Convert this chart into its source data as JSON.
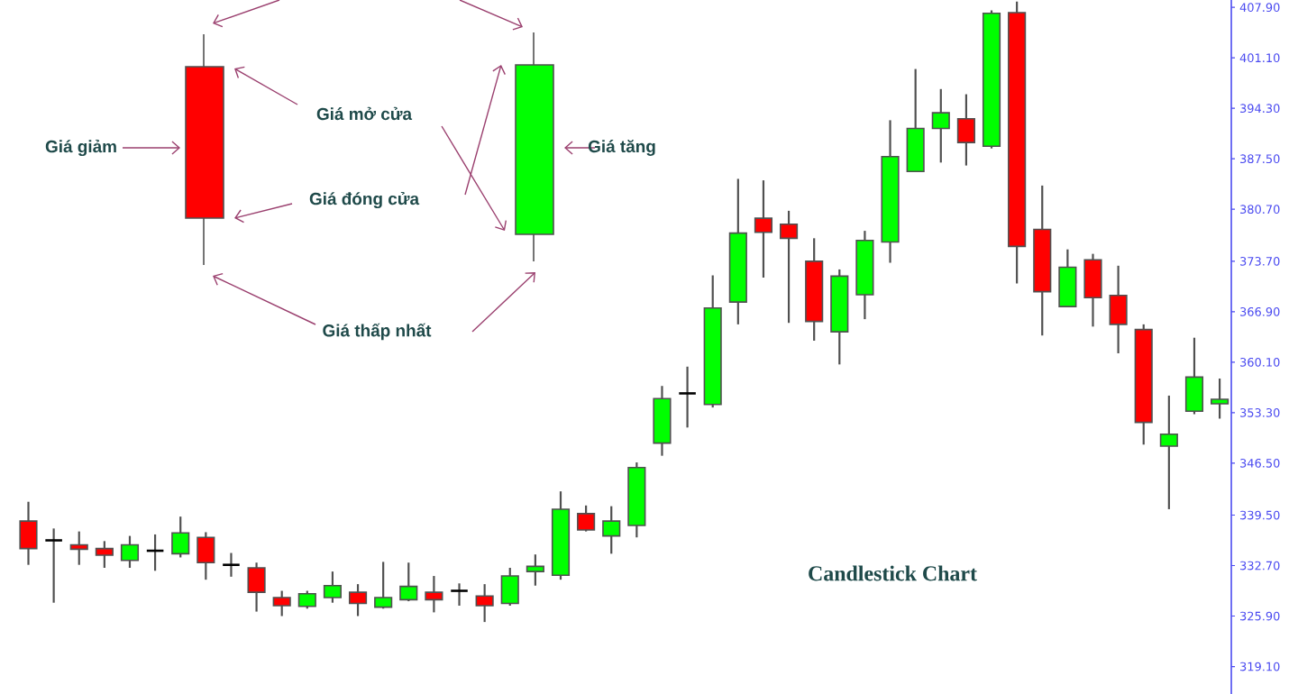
{
  "chart_data": {
    "type": "candlestick",
    "title": "Candlestick Chart",
    "annotations": [
      "Giá giảm",
      "Giá mở cửa",
      "Giá đóng cửa",
      "Giá thấp nhất",
      "Giá tăng"
    ],
    "categories": [
      null,
      null,
      null,
      null,
      null,
      null,
      null,
      null,
      null,
      null,
      null,
      null,
      null,
      null,
      null,
      null,
      null,
      null,
      null,
      null,
      null,
      null,
      null,
      null,
      null,
      null,
      null,
      null,
      null,
      null,
      null,
      null,
      null,
      null,
      null,
      null,
      null,
      null,
      null,
      null,
      null,
      null,
      null,
      null,
      null,
      null,
      null,
      null
    ],
    "ohlc": [
      [
        338.7,
        341.3,
        332.8,
        335.0
      ],
      [
        336.1,
        337.7,
        327.7,
        336.1
      ],
      [
        335.5,
        337.3,
        332.8,
        334.9
      ],
      [
        335.0,
        336.0,
        332.4,
        334.1
      ],
      [
        333.4,
        336.7,
        332.4,
        335.5
      ],
      [
        334.7,
        336.9,
        332.0,
        334.7
      ],
      [
        334.3,
        339.3,
        333.8,
        337.1
      ],
      [
        336.5,
        337.2,
        330.8,
        333.1
      ],
      [
        332.8,
        334.4,
        331.2,
        332.8
      ],
      [
        332.4,
        333.1,
        326.5,
        329.1
      ],
      [
        328.4,
        329.3,
        325.9,
        327.3
      ],
      [
        327.2,
        329.3,
        326.9,
        328.9
      ],
      [
        328.4,
        331.9,
        327.7,
        330.0
      ],
      [
        329.1,
        330.2,
        325.9,
        327.6
      ],
      [
        327.1,
        333.2,
        326.9,
        328.4
      ],
      [
        328.1,
        333.1,
        327.9,
        329.9
      ],
      [
        329.1,
        331.3,
        326.4,
        328.1
      ],
      [
        329.3,
        330.3,
        327.3,
        329.3
      ],
      [
        328.6,
        330.2,
        325.1,
        327.3
      ],
      [
        327.6,
        332.4,
        327.3,
        331.3
      ],
      [
        331.9,
        334.2,
        330.0,
        332.6
      ],
      [
        331.4,
        342.7,
        330.8,
        340.3
      ],
      [
        339.7,
        340.8,
        337.3,
        337.5
      ],
      [
        336.7,
        340.7,
        334.3,
        338.7
      ],
      [
        338.1,
        346.6,
        336.5,
        345.9
      ],
      [
        349.2,
        356.9,
        347.5,
        355.2
      ],
      [
        355.9,
        359.5,
        351.3,
        355.9
      ],
      [
        354.4,
        371.8,
        354.0,
        367.4
      ],
      [
        368.2,
        384.8,
        365.2,
        377.5
      ],
      [
        379.5,
        384.6,
        371.5,
        377.6
      ],
      [
        378.7,
        380.5,
        365.4,
        376.8
      ],
      [
        373.7,
        376.8,
        363.0,
        365.6
      ],
      [
        364.2,
        372.6,
        359.8,
        371.7
      ],
      [
        369.2,
        377.8,
        365.9,
        376.5
      ],
      [
        376.3,
        392.7,
        373.5,
        387.8
      ],
      [
        385.8,
        399.6,
        385.8,
        391.6
      ],
      [
        391.6,
        396.9,
        387.0,
        393.7
      ],
      [
        392.9,
        396.2,
        386.6,
        389.7
      ],
      [
        389.2,
        407.5,
        388.9,
        407.1
      ],
      [
        407.2,
        408.7,
        370.7,
        375.7
      ],
      [
        378.0,
        383.9,
        363.7,
        369.6
      ],
      [
        367.6,
        375.3,
        367.6,
        372.9
      ],
      [
        373.9,
        374.7,
        364.9,
        368.8
      ],
      [
        369.1,
        373.1,
        361.3,
        365.2
      ],
      [
        364.5,
        365.2,
        349.0,
        352.0
      ],
      [
        348.8,
        355.6,
        340.3,
        350.4
      ],
      [
        353.5,
        363.4,
        353.1,
        358.1
      ],
      [
        354.5,
        357.9,
        352.5,
        355.1
      ]
    ],
    "colors": [
      "#ff0000",
      "#000000",
      "#ff0000",
      "#ff0000",
      "#00ff00",
      "#000000",
      "#00ff00",
      "#ff0000",
      "#000000",
      "#ff0000",
      "#ff0000",
      "#00ff00",
      "#00ff00",
      "#ff0000",
      "#00ff00",
      "#00ff00",
      "#ff0000",
      "#000000",
      "#ff0000",
      "#00ff00",
      "#00ff00",
      "#00ff00",
      "#ff0000",
      "#00ff00",
      "#00ff00",
      "#00ff00",
      "#000000",
      "#00ff00",
      "#00ff00",
      "#ff0000",
      "#ff0000",
      "#ff0000",
      "#00ff00",
      "#00ff00",
      "#00ff00",
      "#00ff00",
      "#00ff00",
      "#ff0000",
      "#00ff00",
      "#ff0000",
      "#ff0000",
      "#00ff00",
      "#ff0000",
      "#ff0000",
      "#ff0000",
      "#00ff00",
      "#00ff00",
      "#00ff00"
    ],
    "ylim": [
      315.4,
      408.9
    ],
    "yticks": [
      {
        "value": 319.1,
        "label": "319.10"
      },
      {
        "value": 325.9,
        "label": "325.90"
      },
      {
        "value": 332.7,
        "label": "332.70"
      },
      {
        "value": 339.5,
        "label": "339.50"
      },
      {
        "value": 346.5,
        "label": "346.50"
      },
      {
        "value": 353.3,
        "label": "353.30"
      },
      {
        "value": 360.1,
        "label": "360.10"
      },
      {
        "value": 366.9,
        "label": "366.90"
      },
      {
        "value": 373.7,
        "label": "373.70"
      },
      {
        "value": 380.7,
        "label": "380.70"
      },
      {
        "value": 387.5,
        "label": "387.50"
      },
      {
        "value": 394.3,
        "label": "394.30"
      },
      {
        "value": 401.1,
        "label": "401.10"
      },
      {
        "value": 407.9,
        "label": "407.90"
      }
    ],
    "tick_labels": "y"
  }
}
